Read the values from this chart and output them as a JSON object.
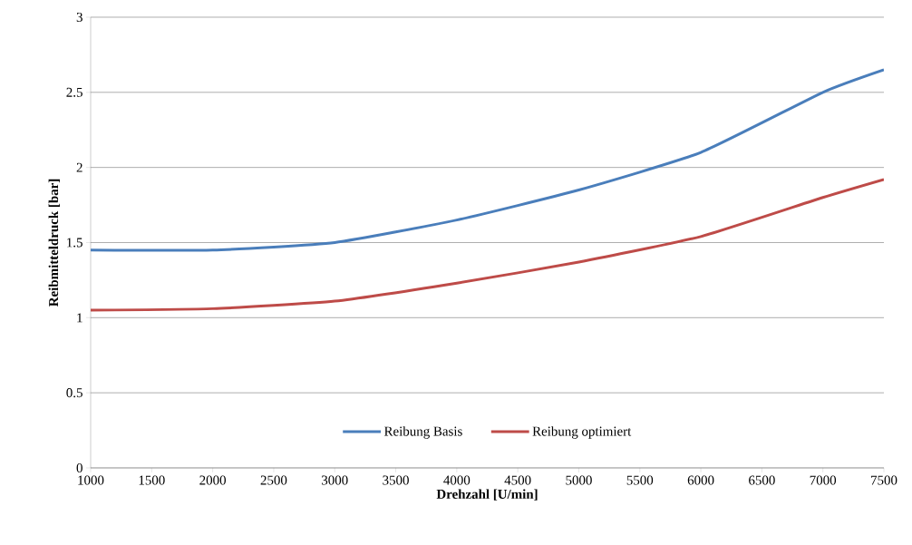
{
  "chart_data": {
    "type": "line",
    "xlabel": "Drehzahl [U/min]",
    "ylabel": "Reibmitteldruck [bar]",
    "x": [
      1000,
      2000,
      3000,
      4000,
      5000,
      6000,
      7000,
      7500
    ],
    "series": [
      {
        "name": "Reibung Basis",
        "color": "#4a7ebb",
        "values": [
          1.45,
          1.45,
          1.5,
          1.65,
          1.85,
          2.1,
          2.5,
          2.65
        ]
      },
      {
        "name": "Reibung optimiert",
        "color": "#be4b48",
        "values": [
          1.05,
          1.06,
          1.11,
          1.23,
          1.37,
          1.54,
          1.8,
          1.92
        ]
      }
    ],
    "xlim": [
      1000,
      7500
    ],
    "xticks": [
      1000,
      1500,
      2000,
      2500,
      3000,
      3500,
      4000,
      4500,
      5000,
      5500,
      6000,
      6500,
      7000,
      7500
    ],
    "ylim": [
      0,
      3
    ],
    "yticks": [
      0,
      0.5,
      1,
      1.5,
      2,
      2.5,
      3
    ],
    "grid": "y",
    "legend": "bottom"
  }
}
